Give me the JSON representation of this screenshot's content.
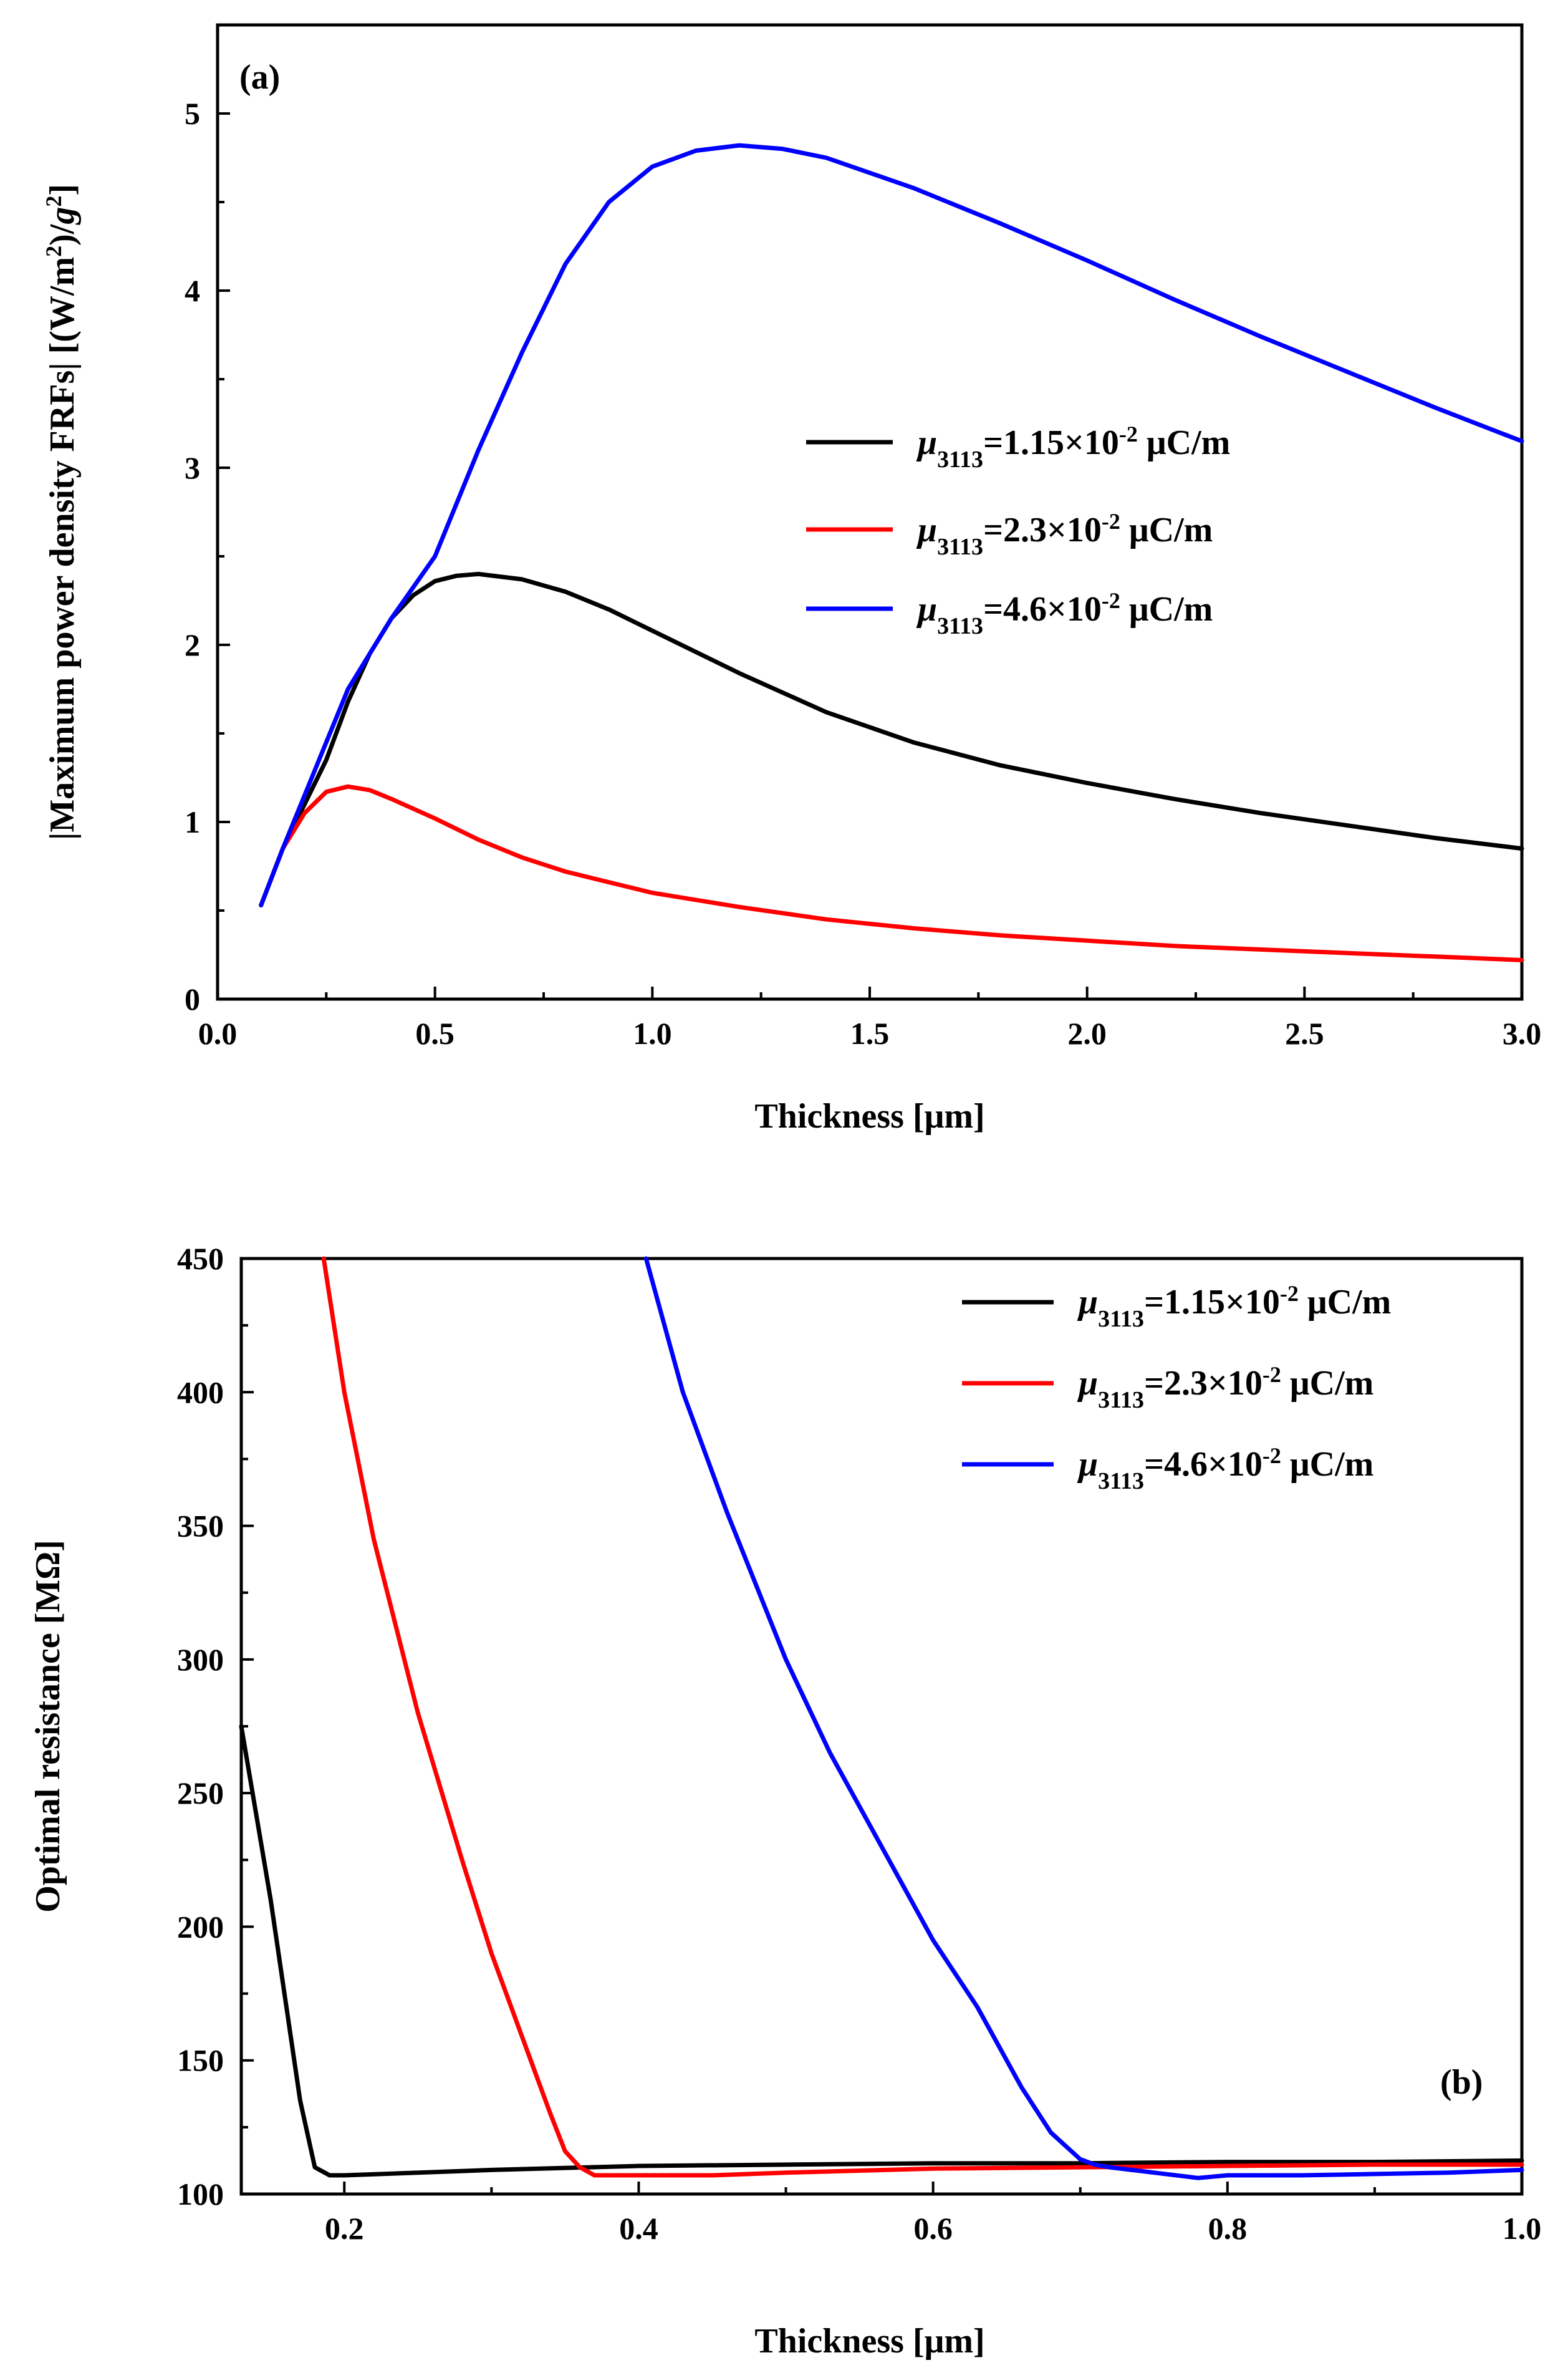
{
  "chart_data": [
    {
      "type": "line",
      "panel_label": "(a)",
      "xlabel": "Thickness [μm]",
      "ylabel_prefix": "|Maximum power density FRFs| [(W/m",
      "ylabel_sup1": "2",
      "ylabel_mid": ")/",
      "ylabel_italic": "g",
      "ylabel_sup2": "2",
      "ylabel_suffix": "]",
      "xlim": [
        0.0,
        3.0
      ],
      "ylim": [
        0,
        5.5
      ],
      "xticks": [
        0.0,
        0.5,
        1.0,
        1.5,
        2.0,
        2.5,
        3.0
      ],
      "xtick_labels": [
        "0.0",
        "0.5",
        "1.0",
        "1.5",
        "2.0",
        "2.5",
        "3.0"
      ],
      "yticks": [
        0,
        1,
        2,
        3,
        4,
        5
      ],
      "ytick_labels": [
        "0",
        "1",
        "2",
        "3",
        "4",
        "5"
      ],
      "legend_position": "center-right",
      "series": [
        {
          "name": "μ3113=1.15×10-2 μC/m",
          "legend": {
            "sym": "μ",
            "sub": "3113",
            "eq": "=1.15×10",
            "exp": "-2",
            "unit": " μC/m"
          },
          "color": "#000000",
          "x": [
            0.1,
            0.15,
            0.2,
            0.25,
            0.3,
            0.35,
            0.4,
            0.45,
            0.5,
            0.55,
            0.6,
            0.7,
            0.8,
            0.9,
            1.0,
            1.2,
            1.4,
            1.6,
            1.8,
            2.0,
            2.2,
            2.4,
            2.6,
            2.8,
            3.0
          ],
          "y": [
            0.53,
            0.85,
            1.1,
            1.35,
            1.68,
            1.95,
            2.15,
            2.28,
            2.36,
            2.39,
            2.4,
            2.37,
            2.3,
            2.2,
            2.08,
            1.84,
            1.62,
            1.45,
            1.32,
            1.22,
            1.13,
            1.05,
            0.98,
            0.91,
            0.85
          ]
        },
        {
          "name": "μ3113=2.3×10-2 μC/m",
          "legend": {
            "sym": "μ",
            "sub": "3113",
            "eq": "=2.3×10",
            "exp": "-2",
            "unit": " μC/m"
          },
          "color": "#ff0000",
          "x": [
            0.1,
            0.15,
            0.2,
            0.25,
            0.3,
            0.35,
            0.4,
            0.5,
            0.6,
            0.7,
            0.8,
            0.9,
            1.0,
            1.2,
            1.4,
            1.6,
            1.8,
            2.0,
            2.2,
            2.4,
            2.6,
            2.8,
            3.0
          ],
          "y": [
            0.53,
            0.85,
            1.05,
            1.17,
            1.2,
            1.18,
            1.13,
            1.02,
            0.9,
            0.8,
            0.72,
            0.66,
            0.6,
            0.52,
            0.45,
            0.4,
            0.36,
            0.33,
            0.3,
            0.28,
            0.26,
            0.24,
            0.22
          ]
        },
        {
          "name": "μ3113=4.6×10-2 μC/m",
          "legend": {
            "sym": "μ",
            "sub": "3113",
            "eq": "=4.6×10",
            "exp": "-2",
            "unit": " μC/m"
          },
          "color": "#0000ff",
          "x": [
            0.1,
            0.15,
            0.2,
            0.25,
            0.3,
            0.4,
            0.5,
            0.6,
            0.7,
            0.8,
            0.9,
            1.0,
            1.1,
            1.2,
            1.3,
            1.4,
            1.6,
            1.8,
            2.0,
            2.2,
            2.4,
            2.6,
            2.8,
            3.0
          ],
          "y": [
            0.53,
            0.85,
            1.15,
            1.45,
            1.75,
            2.15,
            2.5,
            3.1,
            3.65,
            4.15,
            4.5,
            4.7,
            4.79,
            4.82,
            4.8,
            4.75,
            4.58,
            4.38,
            4.17,
            3.95,
            3.74,
            3.54,
            3.34,
            3.15
          ]
        }
      ]
    },
    {
      "type": "line",
      "panel_label": "(b)",
      "xlabel": "Thickness [μm]",
      "ylabel": "Optimal resistance [MΩ]",
      "xlim": [
        0.13,
        1.0
      ],
      "ylim": [
        100,
        450
      ],
      "xticks": [
        0.2,
        0.4,
        0.6,
        0.8,
        1.0
      ],
      "xtick_labels": [
        "0.2",
        "0.4",
        "0.6",
        "0.8",
        "1.0"
      ],
      "yticks": [
        100,
        150,
        200,
        250,
        300,
        350,
        400,
        450
      ],
      "ytick_labels": [
        "100",
        "150",
        "200",
        "250",
        "300",
        "350",
        "400",
        "450"
      ],
      "legend_position": "top-right",
      "series": [
        {
          "name": "μ3113=1.15×10-2 μC/m",
          "legend": {
            "sym": "μ",
            "sub": "3113",
            "eq": "=1.15×10",
            "exp": "-2",
            "unit": " μC/m"
          },
          "color": "#000000",
          "x": [
            0.13,
            0.15,
            0.17,
            0.18,
            0.19,
            0.2,
            0.25,
            0.3,
            0.4,
            0.5,
            0.6,
            0.7,
            0.8,
            0.9,
            1.0
          ],
          "y": [
            275,
            210,
            135,
            110,
            107,
            107,
            108,
            109,
            110.5,
            111,
            111.5,
            111.5,
            112,
            112,
            112.5
          ]
        },
        {
          "name": "μ3113=2.3×10-2 μC/m",
          "legend": {
            "sym": "μ",
            "sub": "3113",
            "eq": "=2.3×10",
            "exp": "-2",
            "unit": " μC/m"
          },
          "color": "#ff0000",
          "x": [
            0.186,
            0.2,
            0.22,
            0.25,
            0.28,
            0.3,
            0.32,
            0.34,
            0.35,
            0.36,
            0.37,
            0.4,
            0.45,
            0.5,
            0.6,
            0.7,
            0.8,
            0.9,
            1.0
          ],
          "y": [
            450,
            400,
            345,
            280,
            225,
            190,
            160,
            130,
            116,
            110,
            107,
            107,
            107,
            108,
            109.5,
            110,
            110.5,
            111,
            111
          ]
        },
        {
          "name": "μ3113=4.6×10-2 μC/m",
          "legend": {
            "sym": "μ",
            "sub": "3113",
            "eq": "=4.6×10",
            "exp": "-2",
            "unit": " μC/m"
          },
          "color": "#0000ff",
          "x": [
            0.405,
            0.43,
            0.46,
            0.5,
            0.53,
            0.56,
            0.6,
            0.63,
            0.66,
            0.68,
            0.7,
            0.71,
            0.72,
            0.75,
            0.78,
            0.8,
            0.85,
            0.9,
            0.95,
            1.0
          ],
          "y": [
            450,
            400,
            355,
            300,
            265,
            235,
            195,
            170,
            140,
            123,
            113,
            111,
            110,
            108,
            106,
            107,
            107,
            107.5,
            108,
            109
          ]
        }
      ]
    }
  ]
}
